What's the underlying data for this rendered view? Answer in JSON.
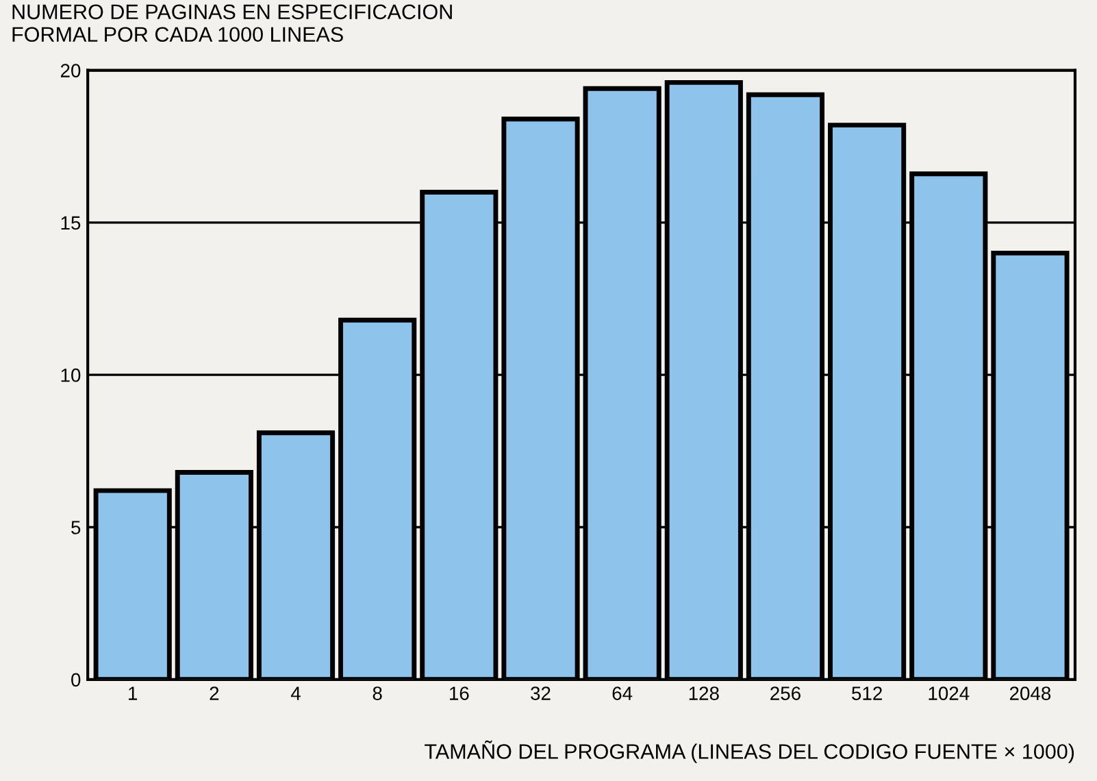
{
  "chart_data": {
    "type": "bar",
    "ylabel": "NUMERO DE PAGINAS EN ESPECIFICACION\nFORMAL POR CADA 1000 LINEAS",
    "xlabel": "TAMAÑO DEL PROGRAMA (LINEAS DEL CODIGO FUENTE × 1000)",
    "categories": [
      "1",
      "2",
      "4",
      "8",
      "16",
      "32",
      "64",
      "128",
      "256",
      "512",
      "1024",
      "2048"
    ],
    "values": [
      6.2,
      6.8,
      8.1,
      11.8,
      16.0,
      18.4,
      19.4,
      19.6,
      19.2,
      18.2,
      16.6,
      14.0
    ],
    "color": "#8ec4ec",
    "ylim": [
      0,
      20
    ],
    "yticks": [
      0,
      5,
      10,
      15,
      20
    ],
    "grid": "y"
  }
}
